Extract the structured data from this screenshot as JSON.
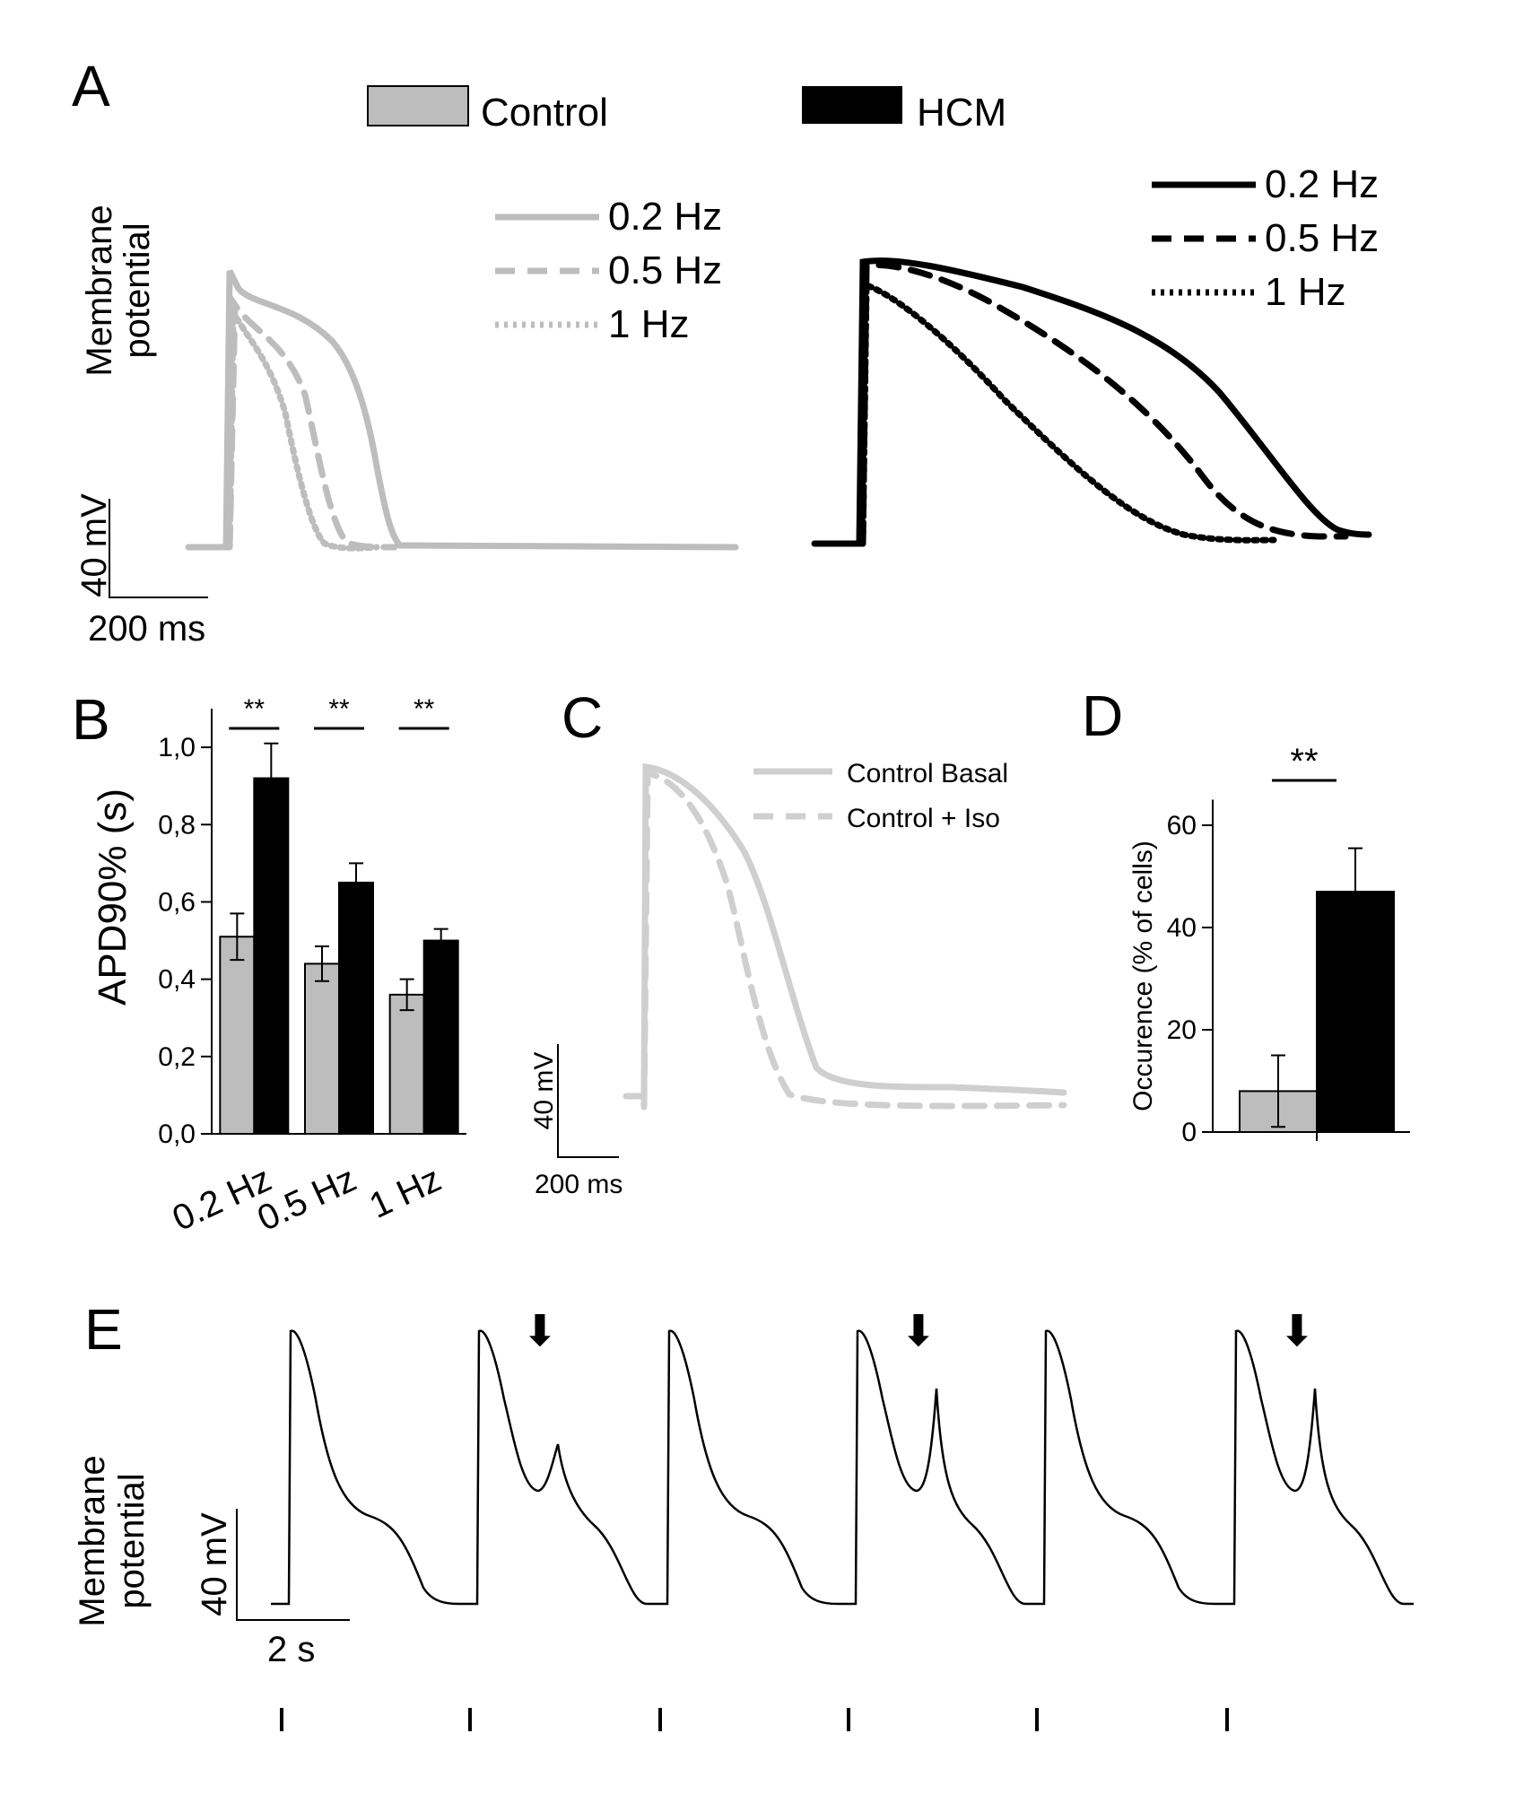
{
  "figure": {
    "panels": [
      "A",
      "B",
      "C",
      "D",
      "E"
    ]
  },
  "legend": {
    "control": "Control",
    "hcm": "HCM",
    "control_color": "#bdbdbd",
    "hcm_color": "#000000"
  },
  "chart_data": [
    {
      "panel": "A",
      "type": "line",
      "group": "Control",
      "ylabel": [
        "Membrane",
        "potential"
      ],
      "scale_bar": {
        "voltage": "40 mV",
        "time": "200 ms"
      },
      "series": [
        {
          "name": "0.2 Hz",
          "style": "solid",
          "apd90_s": 0.51
        },
        {
          "name": "0.5 Hz",
          "style": "dashed",
          "apd90_s": 0.44
        },
        {
          "name": "1 Hz",
          "style": "dotted",
          "apd90_s": 0.36
        }
      ]
    },
    {
      "panel": "A",
      "type": "line",
      "group": "HCM",
      "series": [
        {
          "name": "0.2 Hz",
          "style": "solid",
          "apd90_s": 0.92
        },
        {
          "name": "0.5 Hz",
          "style": "dashed",
          "apd90_s": 0.65
        },
        {
          "name": "1 Hz",
          "style": "dotted",
          "apd90_s": 0.5
        }
      ]
    },
    {
      "panel": "B",
      "type": "bar",
      "ylabel": "APD90% (s)",
      "categories": [
        "0.2 Hz",
        "0.5 Hz",
        "1 Hz"
      ],
      "ylim": [
        0,
        1.1
      ],
      "yticks": [
        "0,0",
        "0,2",
        "0,4",
        "0,6",
        "0,8",
        "1,0"
      ],
      "significance": "**",
      "series": [
        {
          "name": "Control",
          "values": [
            0.51,
            0.44,
            0.36
          ],
          "errors": [
            0.06,
            0.045,
            0.04
          ]
        },
        {
          "name": "HCM",
          "values": [
            0.92,
            0.65,
            0.5
          ],
          "errors": [
            0.09,
            0.05,
            0.03
          ]
        }
      ]
    },
    {
      "panel": "C",
      "type": "line",
      "scale_bar": {
        "voltage": "40 mV",
        "time": "200 ms"
      },
      "series": [
        {
          "name": "Control Basal",
          "style": "solid"
        },
        {
          "name": "Control + Iso",
          "style": "dashed"
        }
      ]
    },
    {
      "panel": "D",
      "type": "bar",
      "ylabel": "Occurence (% of cells)",
      "ylim": [
        0,
        65
      ],
      "yticks": [
        "0",
        "20",
        "40",
        "60"
      ],
      "significance": "**",
      "series": [
        {
          "name": "Control",
          "values": [
            8
          ],
          "errors": [
            7
          ]
        },
        {
          "name": "HCM",
          "values": [
            47
          ],
          "errors": [
            8.5
          ]
        }
      ]
    },
    {
      "panel": "E",
      "type": "line",
      "ylabel": [
        "Membrane",
        "potential"
      ],
      "scale_bar": {
        "voltage": "40 mV",
        "time": "2 s"
      },
      "beats": 6,
      "early_afterdepolarization_beats": [
        1,
        3,
        5
      ],
      "arrow_glyph": "⬇"
    }
  ]
}
